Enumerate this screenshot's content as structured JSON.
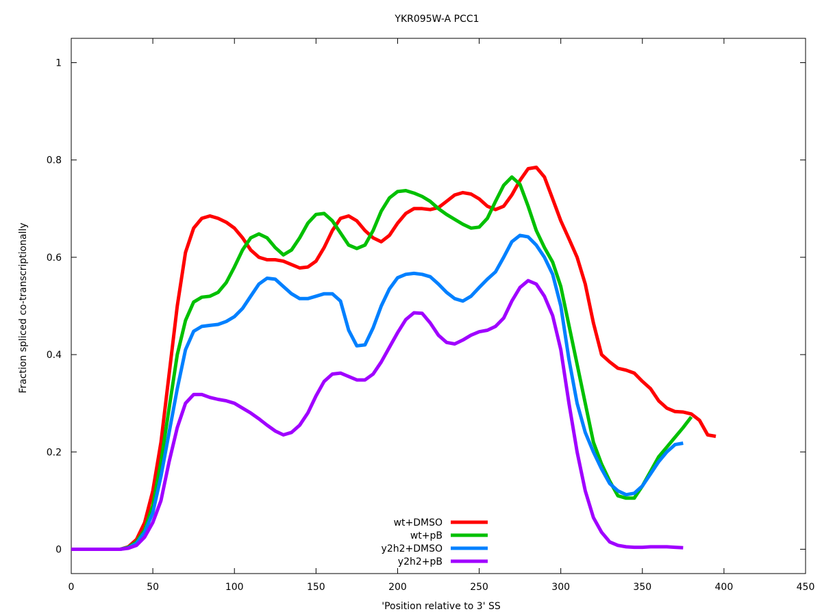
{
  "chart_data": {
    "type": "line",
    "title": "YKR095W-A PCC1",
    "xlabel": "'Position relative to 3' SS",
    "ylabel": "Fraction spliced co-transcriptionally",
    "xlim": [
      0,
      450
    ],
    "ylim": [
      -0.05,
      1.05
    ],
    "xticks": [
      0,
      50,
      100,
      150,
      200,
      250,
      300,
      350,
      400,
      450
    ],
    "yticks": [
      0,
      0.2,
      0.4,
      0.6,
      0.8,
      1
    ],
    "xtick_labels": [
      "0",
      "50",
      "100",
      "150",
      "200",
      "250",
      "300",
      "350",
      "400",
      "450"
    ],
    "ytick_labels": [
      "0",
      "0.2",
      "0.4",
      "0.6",
      "0.8",
      "1"
    ],
    "grid": false,
    "legend_position": "bottom-center",
    "series": [
      {
        "name": "wt+DMSO",
        "color": "#ff0000",
        "points": [
          [
            0,
            0
          ],
          [
            30,
            0
          ],
          [
            35,
            0.005
          ],
          [
            40,
            0.02
          ],
          [
            45,
            0.055
          ],
          [
            50,
            0.12
          ],
          [
            55,
            0.22
          ],
          [
            60,
            0.36
          ],
          [
            65,
            0.5
          ],
          [
            70,
            0.61
          ],
          [
            75,
            0.66
          ],
          [
            80,
            0.68
          ],
          [
            85,
            0.685
          ],
          [
            90,
            0.68
          ],
          [
            95,
            0.672
          ],
          [
            100,
            0.66
          ],
          [
            105,
            0.64
          ],
          [
            110,
            0.615
          ],
          [
            115,
            0.6
          ],
          [
            120,
            0.595
          ],
          [
            125,
            0.595
          ],
          [
            130,
            0.592
          ],
          [
            135,
            0.585
          ],
          [
            140,
            0.578
          ],
          [
            145,
            0.58
          ],
          [
            150,
            0.592
          ],
          [
            155,
            0.62
          ],
          [
            160,
            0.655
          ],
          [
            165,
            0.68
          ],
          [
            170,
            0.685
          ],
          [
            175,
            0.675
          ],
          [
            180,
            0.655
          ],
          [
            185,
            0.64
          ],
          [
            190,
            0.632
          ],
          [
            195,
            0.645
          ],
          [
            200,
            0.67
          ],
          [
            205,
            0.69
          ],
          [
            210,
            0.7
          ],
          [
            215,
            0.7
          ],
          [
            220,
            0.698
          ],
          [
            225,
            0.702
          ],
          [
            230,
            0.715
          ],
          [
            235,
            0.728
          ],
          [
            240,
            0.733
          ],
          [
            245,
            0.73
          ],
          [
            250,
            0.72
          ],
          [
            255,
            0.705
          ],
          [
            260,
            0.698
          ],
          [
            265,
            0.705
          ],
          [
            270,
            0.728
          ],
          [
            275,
            0.758
          ],
          [
            280,
            0.782
          ],
          [
            285,
            0.785
          ],
          [
            290,
            0.765
          ],
          [
            295,
            0.72
          ],
          [
            300,
            0.675
          ],
          [
            305,
            0.638
          ],
          [
            310,
            0.6
          ],
          [
            315,
            0.545
          ],
          [
            320,
            0.465
          ],
          [
            325,
            0.4
          ],
          [
            330,
            0.385
          ],
          [
            335,
            0.372
          ],
          [
            340,
            0.368
          ],
          [
            345,
            0.362
          ],
          [
            350,
            0.345
          ],
          [
            355,
            0.33
          ],
          [
            360,
            0.305
          ],
          [
            365,
            0.29
          ],
          [
            370,
            0.283
          ],
          [
            375,
            0.282
          ],
          [
            380,
            0.278
          ],
          [
            385,
            0.265
          ],
          [
            390,
            0.235
          ],
          [
            395,
            0.232
          ]
        ]
      },
      {
        "name": "wt+pB",
        "color": "#00c000",
        "points": [
          [
            0,
            0
          ],
          [
            30,
            0
          ],
          [
            35,
            0.004
          ],
          [
            40,
            0.015
          ],
          [
            45,
            0.04
          ],
          [
            50,
            0.09
          ],
          [
            55,
            0.18
          ],
          [
            60,
            0.29
          ],
          [
            65,
            0.4
          ],
          [
            70,
            0.47
          ],
          [
            75,
            0.508
          ],
          [
            80,
            0.518
          ],
          [
            85,
            0.52
          ],
          [
            90,
            0.528
          ],
          [
            95,
            0.548
          ],
          [
            100,
            0.58
          ],
          [
            105,
            0.615
          ],
          [
            110,
            0.64
          ],
          [
            115,
            0.648
          ],
          [
            120,
            0.64
          ],
          [
            125,
            0.62
          ],
          [
            130,
            0.605
          ],
          [
            135,
            0.615
          ],
          [
            140,
            0.64
          ],
          [
            145,
            0.67
          ],
          [
            150,
            0.688
          ],
          [
            155,
            0.69
          ],
          [
            160,
            0.675
          ],
          [
            165,
            0.65
          ],
          [
            170,
            0.625
          ],
          [
            175,
            0.618
          ],
          [
            180,
            0.625
          ],
          [
            185,
            0.655
          ],
          [
            190,
            0.695
          ],
          [
            195,
            0.722
          ],
          [
            200,
            0.735
          ],
          [
            205,
            0.737
          ],
          [
            210,
            0.732
          ],
          [
            215,
            0.725
          ],
          [
            220,
            0.715
          ],
          [
            225,
            0.7
          ],
          [
            230,
            0.688
          ],
          [
            235,
            0.678
          ],
          [
            240,
            0.668
          ],
          [
            245,
            0.66
          ],
          [
            250,
            0.662
          ],
          [
            255,
            0.68
          ],
          [
            260,
            0.715
          ],
          [
            265,
            0.748
          ],
          [
            270,
            0.765
          ],
          [
            275,
            0.75
          ],
          [
            280,
            0.705
          ],
          [
            285,
            0.655
          ],
          [
            290,
            0.62
          ],
          [
            295,
            0.59
          ],
          [
            300,
            0.54
          ],
          [
            305,
            0.46
          ],
          [
            310,
            0.38
          ],
          [
            315,
            0.3
          ],
          [
            320,
            0.22
          ],
          [
            325,
            0.175
          ],
          [
            330,
            0.14
          ],
          [
            335,
            0.11
          ],
          [
            340,
            0.105
          ],
          [
            345,
            0.105
          ],
          [
            350,
            0.13
          ],
          [
            355,
            0.16
          ],
          [
            360,
            0.19
          ],
          [
            365,
            0.21
          ],
          [
            370,
            0.23
          ],
          [
            375,
            0.25
          ],
          [
            380,
            0.272
          ]
        ]
      },
      {
        "name": "y2h2+DMSO",
        "color": "#0080ff",
        "points": [
          [
            0,
            0
          ],
          [
            30,
            0
          ],
          [
            35,
            0.003
          ],
          [
            40,
            0.012
          ],
          [
            45,
            0.035
          ],
          [
            50,
            0.075
          ],
          [
            55,
            0.15
          ],
          [
            60,
            0.24
          ],
          [
            65,
            0.33
          ],
          [
            70,
            0.41
          ],
          [
            75,
            0.448
          ],
          [
            80,
            0.458
          ],
          [
            85,
            0.46
          ],
          [
            90,
            0.462
          ],
          [
            95,
            0.468
          ],
          [
            100,
            0.478
          ],
          [
            105,
            0.495
          ],
          [
            110,
            0.52
          ],
          [
            115,
            0.545
          ],
          [
            120,
            0.557
          ],
          [
            125,
            0.555
          ],
          [
            130,
            0.54
          ],
          [
            135,
            0.525
          ],
          [
            140,
            0.515
          ],
          [
            145,
            0.515
          ],
          [
            150,
            0.52
          ],
          [
            155,
            0.525
          ],
          [
            160,
            0.525
          ],
          [
            165,
            0.51
          ],
          [
            170,
            0.45
          ],
          [
            175,
            0.418
          ],
          [
            180,
            0.42
          ],
          [
            185,
            0.455
          ],
          [
            190,
            0.5
          ],
          [
            195,
            0.535
          ],
          [
            200,
            0.558
          ],
          [
            205,
            0.565
          ],
          [
            210,
            0.567
          ],
          [
            215,
            0.565
          ],
          [
            220,
            0.56
          ],
          [
            225,
            0.545
          ],
          [
            230,
            0.528
          ],
          [
            235,
            0.515
          ],
          [
            240,
            0.51
          ],
          [
            245,
            0.52
          ],
          [
            250,
            0.538
          ],
          [
            255,
            0.555
          ],
          [
            260,
            0.57
          ],
          [
            265,
            0.6
          ],
          [
            270,
            0.632
          ],
          [
            275,
            0.645
          ],
          [
            280,
            0.642
          ],
          [
            285,
            0.625
          ],
          [
            290,
            0.6
          ],
          [
            295,
            0.565
          ],
          [
            300,
            0.5
          ],
          [
            305,
            0.39
          ],
          [
            310,
            0.3
          ],
          [
            315,
            0.24
          ],
          [
            320,
            0.2
          ],
          [
            325,
            0.165
          ],
          [
            330,
            0.135
          ],
          [
            335,
            0.12
          ],
          [
            340,
            0.112
          ],
          [
            345,
            0.115
          ],
          [
            350,
            0.13
          ],
          [
            355,
            0.155
          ],
          [
            360,
            0.18
          ],
          [
            365,
            0.2
          ],
          [
            370,
            0.215
          ],
          [
            375,
            0.218
          ]
        ]
      },
      {
        "name": "y2h2+pB",
        "color": "#a000ff",
        "points": [
          [
            0,
            0
          ],
          [
            30,
            0
          ],
          [
            35,
            0.002
          ],
          [
            40,
            0.008
          ],
          [
            45,
            0.025
          ],
          [
            50,
            0.055
          ],
          [
            55,
            0.1
          ],
          [
            60,
            0.18
          ],
          [
            65,
            0.25
          ],
          [
            70,
            0.3
          ],
          [
            75,
            0.318
          ],
          [
            80,
            0.318
          ],
          [
            85,
            0.312
          ],
          [
            90,
            0.308
          ],
          [
            95,
            0.305
          ],
          [
            100,
            0.3
          ],
          [
            105,
            0.29
          ],
          [
            110,
            0.28
          ],
          [
            115,
            0.268
          ],
          [
            120,
            0.255
          ],
          [
            125,
            0.243
          ],
          [
            130,
            0.235
          ],
          [
            135,
            0.24
          ],
          [
            140,
            0.255
          ],
          [
            145,
            0.28
          ],
          [
            150,
            0.315
          ],
          [
            155,
            0.345
          ],
          [
            160,
            0.36
          ],
          [
            165,
            0.362
          ],
          [
            170,
            0.355
          ],
          [
            175,
            0.348
          ],
          [
            180,
            0.348
          ],
          [
            185,
            0.36
          ],
          [
            190,
            0.385
          ],
          [
            195,
            0.415
          ],
          [
            200,
            0.445
          ],
          [
            205,
            0.472
          ],
          [
            210,
            0.486
          ],
          [
            215,
            0.485
          ],
          [
            220,
            0.465
          ],
          [
            225,
            0.44
          ],
          [
            230,
            0.425
          ],
          [
            235,
            0.422
          ],
          [
            240,
            0.43
          ],
          [
            245,
            0.44
          ],
          [
            250,
            0.447
          ],
          [
            255,
            0.45
          ],
          [
            260,
            0.458
          ],
          [
            265,
            0.475
          ],
          [
            270,
            0.51
          ],
          [
            275,
            0.538
          ],
          [
            280,
            0.552
          ],
          [
            285,
            0.545
          ],
          [
            290,
            0.52
          ],
          [
            295,
            0.48
          ],
          [
            300,
            0.41
          ],
          [
            305,
            0.3
          ],
          [
            310,
            0.2
          ],
          [
            315,
            0.12
          ],
          [
            320,
            0.065
          ],
          [
            325,
            0.035
          ],
          [
            330,
            0.015
          ],
          [
            335,
            0.008
          ],
          [
            340,
            0.005
          ],
          [
            345,
            0.004
          ],
          [
            350,
            0.004
          ],
          [
            355,
            0.005
          ],
          [
            360,
            0.005
          ],
          [
            365,
            0.005
          ],
          [
            370,
            0.004
          ],
          [
            375,
            0.003
          ]
        ]
      }
    ]
  }
}
